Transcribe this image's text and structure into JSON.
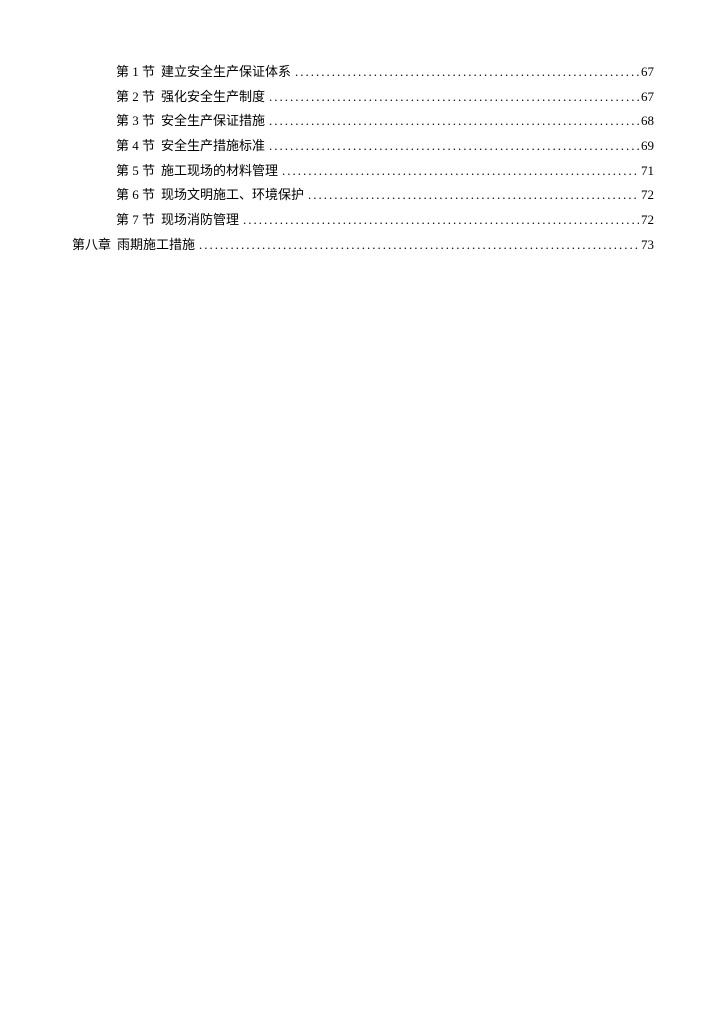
{
  "toc": {
    "text_color": "#000000",
    "background_color": "#ffffff",
    "font_size": 13,
    "entries": [
      {
        "level": 2,
        "label": "第 1 节",
        "title": "建立安全生产保证体系",
        "page": "67"
      },
      {
        "level": 2,
        "label": "第 2 节",
        "title": "强化安全生产制度",
        "page": "67"
      },
      {
        "level": 2,
        "label": "第 3 节",
        "title": "安全生产保证措施",
        "page": "68"
      },
      {
        "level": 2,
        "label": "第 4 节",
        "title": "安全生产措施标准",
        "page": "69"
      },
      {
        "level": 2,
        "label": "第 5 节",
        "title": "施工现场的材料管理",
        "page": "71"
      },
      {
        "level": 2,
        "label": "第 6 节",
        "title": "现场文明施工、环境保护",
        "page": "72"
      },
      {
        "level": 2,
        "label": "第 7 节",
        "title": "现场消防管理",
        "page": "72"
      },
      {
        "level": 1,
        "label": "第八章",
        "title": "雨期施工措施",
        "page": "73"
      }
    ]
  }
}
